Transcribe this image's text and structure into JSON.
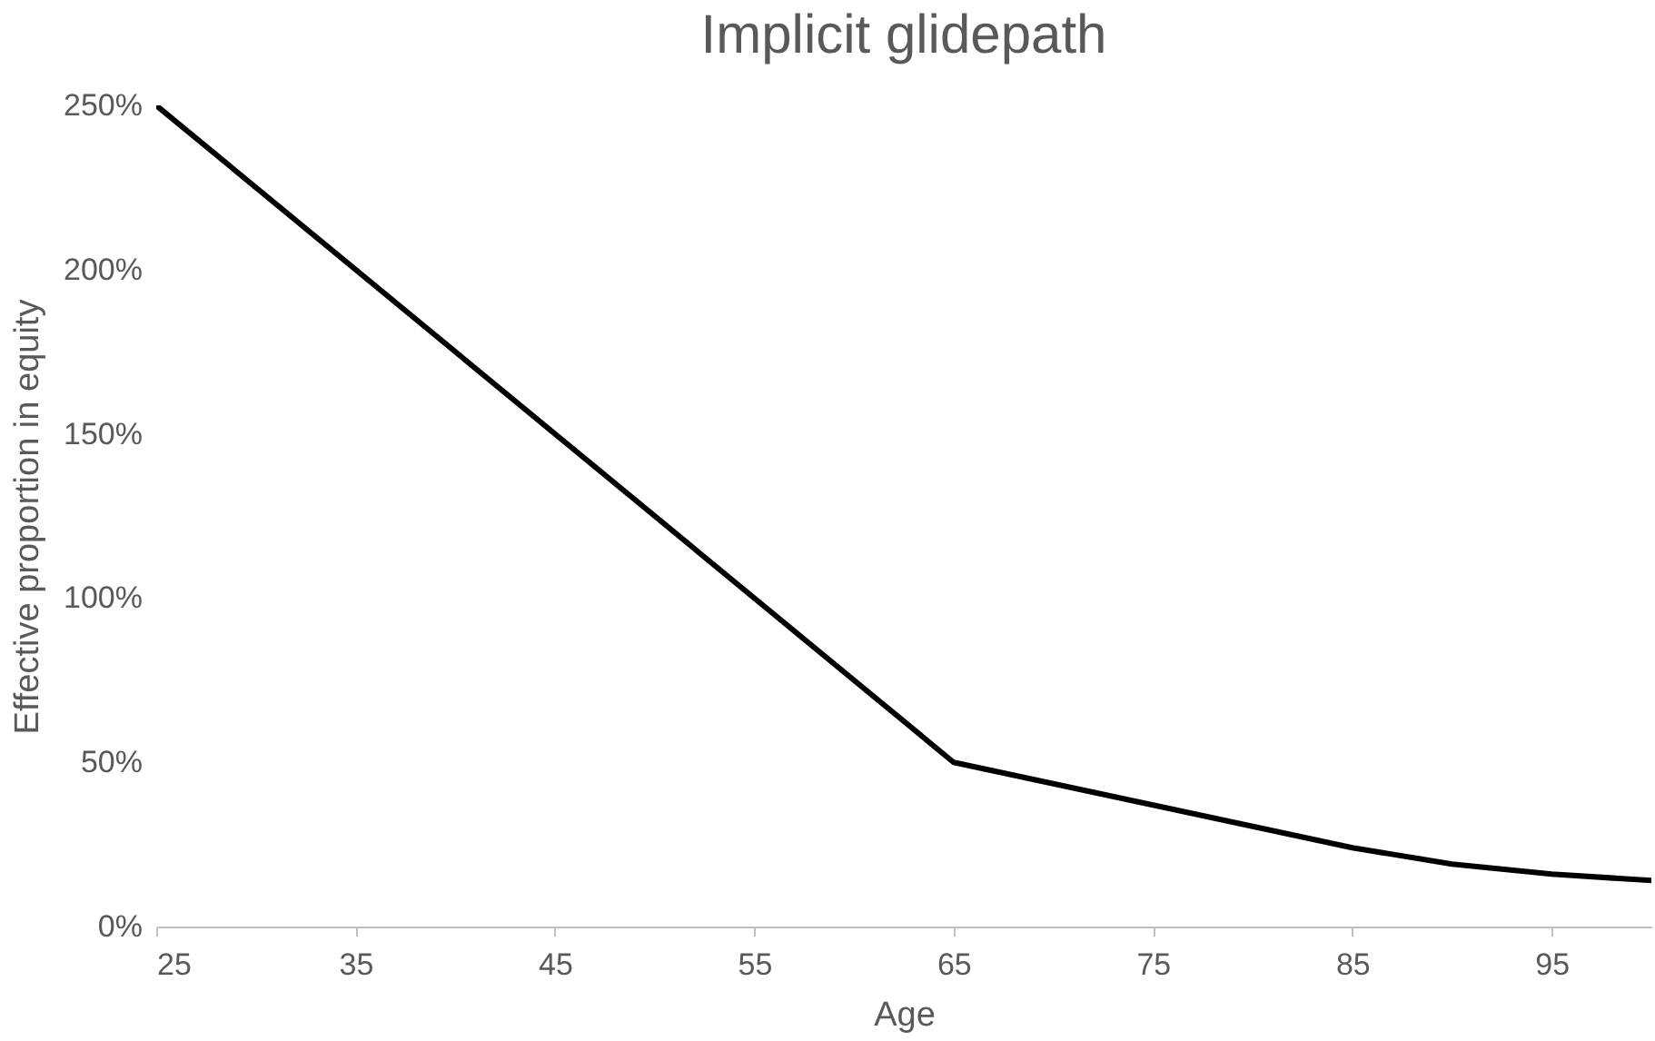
{
  "chart_data": {
    "type": "line",
    "title": "Implicit glidepath",
    "xlabel": "Age",
    "ylabel": "Effective proportion in equity",
    "x": [
      25,
      65,
      75,
      85,
      90,
      95,
      100
    ],
    "series": [
      {
        "color": "#000000",
        "values": [
          250,
          50,
          37,
          24,
          19,
          16,
          14
        ]
      }
    ],
    "xlim": [
      25,
      100
    ],
    "xticks": [
      25,
      35,
      45,
      55,
      65,
      75,
      85,
      95
    ],
    "ylim": [
      0,
      250
    ],
    "yticks": [
      {
        "value": 0,
        "label": "0%"
      },
      {
        "value": 50,
        "label": "50%"
      },
      {
        "value": 100,
        "label": "100%"
      },
      {
        "value": 150,
        "label": "150%"
      },
      {
        "value": 200,
        "label": "200%"
      },
      {
        "value": 250,
        "label": "250%"
      }
    ],
    "grid": false,
    "marker": "none",
    "line_style": "solid"
  }
}
